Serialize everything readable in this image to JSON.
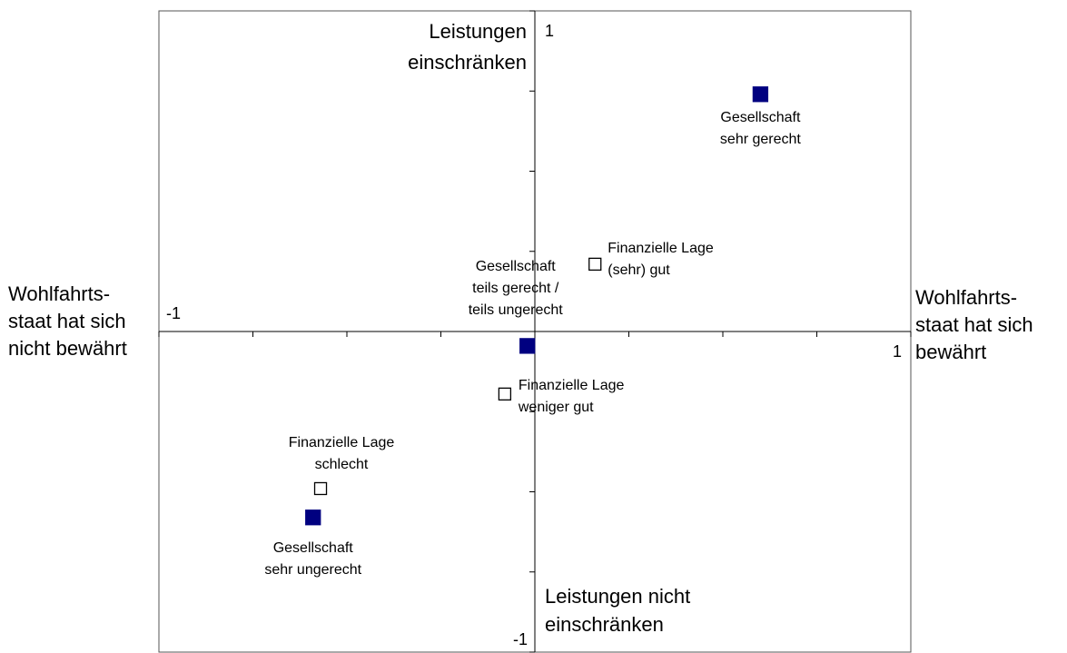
{
  "chart_data": {
    "type": "scatter",
    "xlim": [
      -1,
      1
    ],
    "ylim": [
      -1,
      1
    ],
    "xticks": [
      -1,
      1
    ],
    "yticks": [
      -1,
      1
    ],
    "minor_xticks": [
      -0.75,
      -0.5,
      -0.25,
      0.25,
      0.5,
      0.75
    ],
    "minor_yticks": [
      -0.75,
      -0.5,
      -0.25,
      0.25,
      0.5,
      0.75
    ],
    "axis_titles": {
      "top": [
        "Leistungen",
        "einschränken"
      ],
      "bottom": [
        "Leistungen nicht",
        "einschränken"
      ],
      "left": [
        "Wohlfahrts-",
        "staat hat sich",
        "nicht bewährt"
      ],
      "right": [
        "Wohlfahrts-",
        "staat hat sich",
        "bewährt"
      ]
    },
    "filled_color": "#000080",
    "points": [
      {
        "label": [
          "Gesellschaft",
          "sehr gerecht"
        ],
        "x": 0.6,
        "y": 0.74,
        "marker": "filled"
      },
      {
        "label": [
          "Finanzielle Lage",
          "(sehr) gut"
        ],
        "x": 0.16,
        "y": 0.21,
        "marker": "open"
      },
      {
        "label": [
          "Gesellschaft",
          "teils gerecht /",
          "teils ungerecht"
        ],
        "x": -0.02,
        "y": -0.045,
        "marker": "filled"
      },
      {
        "label": [
          "Finanzielle Lage",
          "weniger gut"
        ],
        "x": -0.08,
        "y": -0.195,
        "marker": "open"
      },
      {
        "label": [
          "Finanzielle Lage",
          "schlecht"
        ],
        "x": -0.57,
        "y": -0.49,
        "marker": "open"
      },
      {
        "label": [
          "Gesellschaft",
          "sehr ungerecht"
        ],
        "x": -0.59,
        "y": -0.58,
        "marker": "filled"
      }
    ]
  }
}
